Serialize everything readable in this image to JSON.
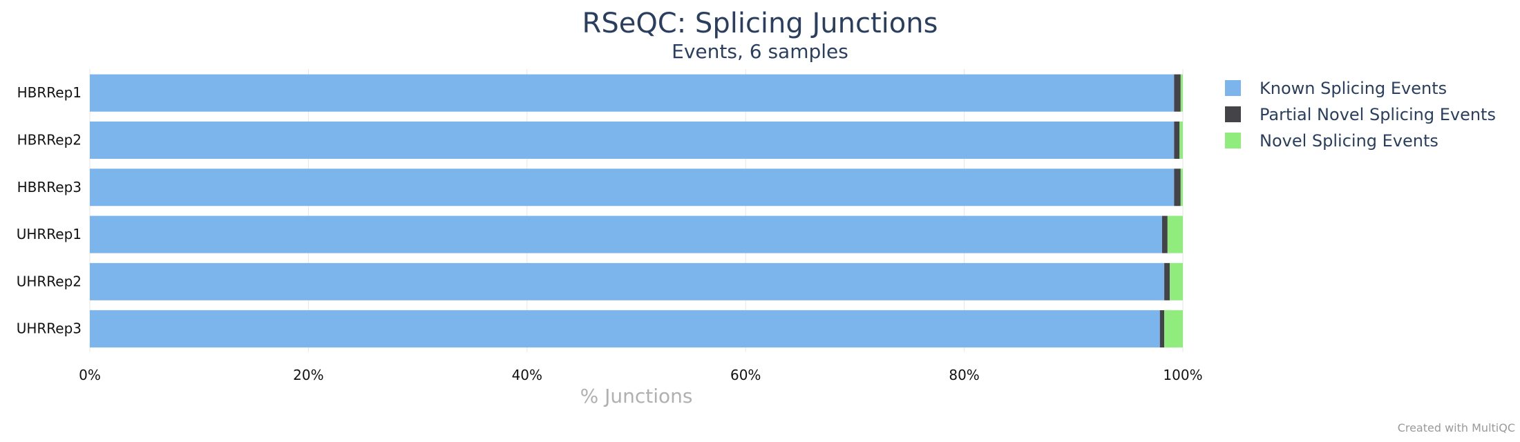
{
  "chart_data": {
    "type": "bar",
    "orientation": "horizontal",
    "stacked": true,
    "title": "RSeQC: Splicing Junctions",
    "subtitle": "Events, 6 samples",
    "xlabel": "% Junctions",
    "ylabel": "",
    "xlim": [
      0,
      100
    ],
    "x_ticks": [
      "0%",
      "20%",
      "40%",
      "60%",
      "80%",
      "100%"
    ],
    "x_tick_values": [
      0,
      20,
      40,
      60,
      80,
      100
    ],
    "grid": true,
    "legend_position": "top-right",
    "categories": [
      "HBRRep1",
      "HBRRep2",
      "HBRRep3",
      "UHRRep1",
      "UHRRep2",
      "UHRRep3"
    ],
    "series": [
      {
        "name": "Known Splicing Events",
        "color": "#7cb5ec",
        "values": [
          99.2,
          99.2,
          99.2,
          98.1,
          98.3,
          97.9
        ]
      },
      {
        "name": "Partial Novel Splicing Events",
        "color": "#434348",
        "values": [
          0.6,
          0.5,
          0.6,
          0.5,
          0.5,
          0.4
        ]
      },
      {
        "name": "Novel Splicing Events",
        "color": "#90ed7d",
        "values": [
          0.2,
          0.3,
          0.2,
          1.4,
          1.2,
          1.7
        ]
      }
    ]
  },
  "footer": {
    "credit": "Created with MultiQC"
  }
}
